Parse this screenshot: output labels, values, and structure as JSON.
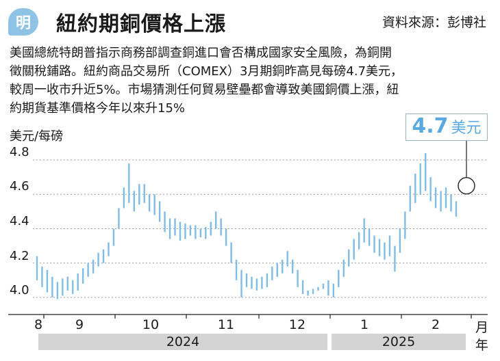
{
  "header": {
    "badge": "明",
    "title": "紐約期銅價格上漲",
    "source": "資料來源：彭博社"
  },
  "body_lines": [
    "美國總統特朗普指示商務部調查銅進口會否構成國家安全風險，為銅開",
    "徵關稅鋪路。紐約商品交易所（COMEX）3月期銅昨高見每磅4.7美元，",
    "較周一收市升近5%。市場猜測任何貿易壁壘都會導致美國銅價上漲，紐",
    "約期貨基準價格今年以來升15%"
  ],
  "callout": {
    "value": "4.7",
    "unit": "美元"
  },
  "colors": {
    "accent": "#5aa9df",
    "series": "#7fbde6",
    "grid": "#9a9a9a"
  },
  "chart_data": {
    "type": "bar",
    "y_unit": "美元/每磅",
    "y_ticks": [
      "4.8",
      "4.6",
      "4.4",
      "4.2",
      "4.0"
    ],
    "ylim": [
      3.96,
      4.86
    ],
    "x_month_labels": [
      "8",
      "9",
      "10",
      "11",
      "12",
      "1",
      "2"
    ],
    "x_unit": "月",
    "years": [
      "2024",
      "2025"
    ],
    "year_unit": "年",
    "grid": "horizontal dashed",
    "series": [
      {
        "values": [
          {
            "low": 4.1,
            "high": 4.24
          },
          {
            "low": 4.06,
            "high": 4.18
          },
          {
            "low": 4.03,
            "high": 4.16
          },
          {
            "low": 4.0,
            "high": 4.12
          },
          {
            "low": 3.99,
            "high": 4.09
          },
          {
            "low": 4.01,
            "high": 4.11
          },
          {
            "low": 4.04,
            "high": 4.12
          },
          {
            "low": 4.02,
            "high": 4.1
          },
          {
            "low": 4.04,
            "high": 4.14
          },
          {
            "low": 4.08,
            "high": 4.17
          },
          {
            "low": 4.12,
            "high": 4.2
          },
          {
            "low": 4.14,
            "high": 4.22
          },
          {
            "low": 4.18,
            "high": 4.26
          },
          {
            "low": 4.2,
            "high": 4.28
          },
          {
            "low": 4.24,
            "high": 4.32
          },
          {
            "low": 4.3,
            "high": 4.4
          },
          {
            "low": 4.4,
            "high": 4.52
          },
          {
            "low": 4.52,
            "high": 4.64
          },
          {
            "low": 4.55,
            "high": 4.78
          },
          {
            "low": 4.5,
            "high": 4.62
          },
          {
            "low": 4.54,
            "high": 4.66
          },
          {
            "low": 4.55,
            "high": 4.66
          },
          {
            "low": 4.5,
            "high": 4.6
          },
          {
            "low": 4.48,
            "high": 4.6
          },
          {
            "low": 4.44,
            "high": 4.56
          },
          {
            "low": 4.38,
            "high": 4.5
          },
          {
            "low": 4.34,
            "high": 4.46
          },
          {
            "low": 4.36,
            "high": 4.46
          },
          {
            "low": 4.33,
            "high": 4.44
          },
          {
            "low": 4.34,
            "high": 4.43
          },
          {
            "low": 4.36,
            "high": 4.42
          },
          {
            "low": 4.34,
            "high": 4.42
          },
          {
            "low": 4.35,
            "high": 4.4
          },
          {
            "low": 4.34,
            "high": 4.41
          },
          {
            "low": 4.36,
            "high": 4.44
          },
          {
            "low": 4.4,
            "high": 4.5
          },
          {
            "low": 4.36,
            "high": 4.46
          },
          {
            "low": 4.3,
            "high": 4.4
          },
          {
            "low": 4.2,
            "high": 4.32
          },
          {
            "low": 4.1,
            "high": 4.22
          },
          {
            "low": 4.0,
            "high": 4.16
          },
          {
            "low": 4.06,
            "high": 4.14
          },
          {
            "low": 4.05,
            "high": 4.12
          },
          {
            "low": 4.04,
            "high": 4.11
          },
          {
            "low": 4.05,
            "high": 4.12
          },
          {
            "low": 4.06,
            "high": 4.14
          },
          {
            "low": 4.1,
            "high": 4.18
          },
          {
            "low": 4.12,
            "high": 4.2
          },
          {
            "low": 4.14,
            "high": 4.22
          },
          {
            "low": 4.18,
            "high": 4.27
          },
          {
            "low": 4.14,
            "high": 4.22
          },
          {
            "low": 4.06,
            "high": 4.16
          },
          {
            "low": 4.02,
            "high": 4.1
          },
          {
            "low": 4.01,
            "high": 4.04
          },
          {
            "low": 4.02,
            "high": 4.05
          },
          {
            "low": 4.04,
            "high": 4.06
          },
          {
            "low": 4.05,
            "high": 4.08
          },
          {
            "low": 4.01,
            "high": 4.1
          },
          {
            "low": 4.0,
            "high": 4.08
          },
          {
            "low": 4.06,
            "high": 4.16
          },
          {
            "low": 4.12,
            "high": 4.22
          },
          {
            "low": 4.18,
            "high": 4.28
          },
          {
            "low": 4.22,
            "high": 4.34
          },
          {
            "low": 4.28,
            "high": 4.38
          },
          {
            "low": 4.32,
            "high": 4.46
          },
          {
            "low": 4.3,
            "high": 4.4
          },
          {
            "low": 4.26,
            "high": 4.36
          },
          {
            "low": 4.24,
            "high": 4.34
          },
          {
            "low": 4.22,
            "high": 4.32
          },
          {
            "low": 4.24,
            "high": 4.36
          },
          {
            "low": 4.15,
            "high": 4.3
          },
          {
            "low": 4.26,
            "high": 4.4
          },
          {
            "low": 4.34,
            "high": 4.5
          },
          {
            "low": 4.5,
            "high": 4.65
          },
          {
            "low": 4.55,
            "high": 4.72
          },
          {
            "low": 4.6,
            "high": 4.78
          },
          {
            "low": 4.62,
            "high": 4.84
          },
          {
            "low": 4.56,
            "high": 4.7
          },
          {
            "low": 4.52,
            "high": 4.64
          },
          {
            "low": 4.5,
            "high": 4.62
          },
          {
            "low": 4.52,
            "high": 4.64
          },
          {
            "low": 4.5,
            "high": 4.6
          },
          {
            "low": 4.47,
            "high": 4.56
          }
        ]
      }
    ],
    "highlight": {
      "value": 4.7,
      "unit": "美元"
    }
  }
}
